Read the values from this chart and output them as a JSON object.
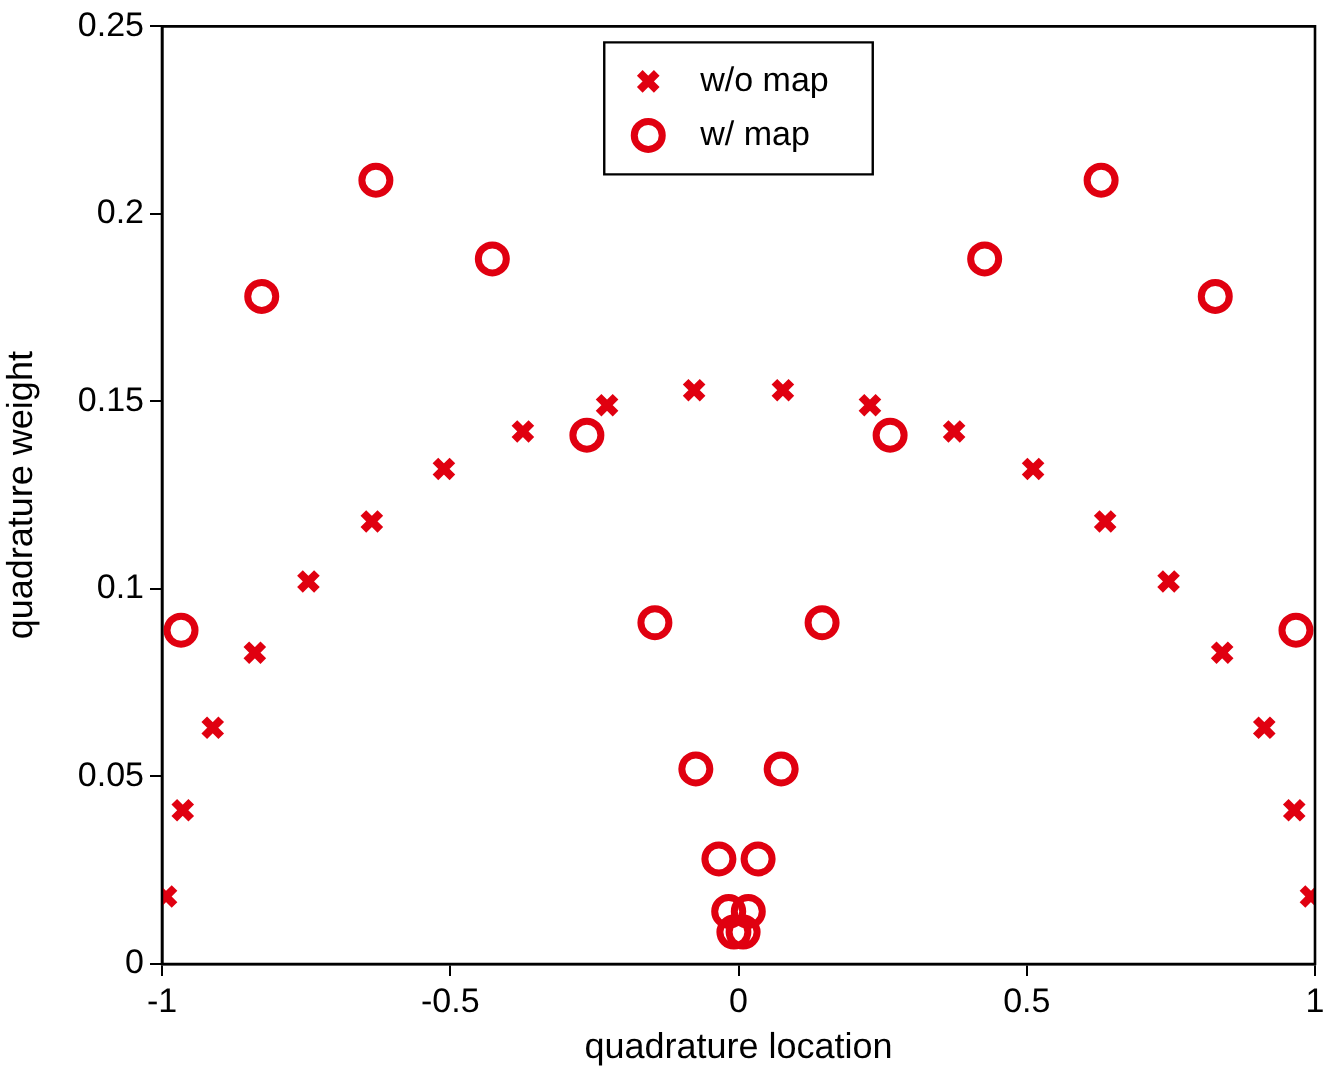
{
  "chart_data": {
    "type": "scatter",
    "xlabel": "quadrature location",
    "ylabel": "quadrature weight",
    "xlim": [
      -1,
      1
    ],
    "ylim": [
      0,
      0.25
    ],
    "xticks": [
      -1,
      -0.5,
      0,
      0.5,
      1
    ],
    "yticks": [
      0,
      0.05,
      0.1,
      0.15,
      0.2,
      0.25
    ],
    "grid": false,
    "legend": "top",
    "series": [
      {
        "name": "w/o map",
        "color": "#e00010",
        "marker": "cross",
        "x": [
          -0.993,
          -0.964,
          -0.912,
          -0.839,
          -0.746,
          -0.636,
          -0.511,
          -0.374,
          -0.228,
          -0.077,
          0.077,
          0.228,
          0.374,
          0.511,
          0.636,
          0.746,
          0.839,
          0.912,
          0.964,
          0.993
        ],
        "values": [
          0.018,
          0.041,
          0.063,
          0.083,
          0.102,
          0.118,
          0.132,
          0.142,
          0.149,
          0.153,
          0.153,
          0.149,
          0.142,
          0.132,
          0.118,
          0.102,
          0.083,
          0.063,
          0.041,
          0.018
        ]
      },
      {
        "name": "w/ map",
        "color": "#e00010",
        "marker": "circle",
        "x": [
          -0.967,
          -0.827,
          -0.629,
          -0.427,
          -0.263,
          -0.145,
          -0.074,
          -0.034,
          -0.017,
          -0.008,
          0.008,
          0.017,
          0.034,
          0.074,
          0.145,
          0.263,
          0.427,
          0.629,
          0.827,
          0.967
        ],
        "values": [
          0.089,
          0.178,
          0.209,
          0.188,
          0.141,
          0.091,
          0.052,
          0.028,
          0.014,
          0.0085,
          0.0085,
          0.014,
          0.028,
          0.052,
          0.091,
          0.141,
          0.188,
          0.209,
          0.178,
          0.089
        ]
      }
    ]
  }
}
